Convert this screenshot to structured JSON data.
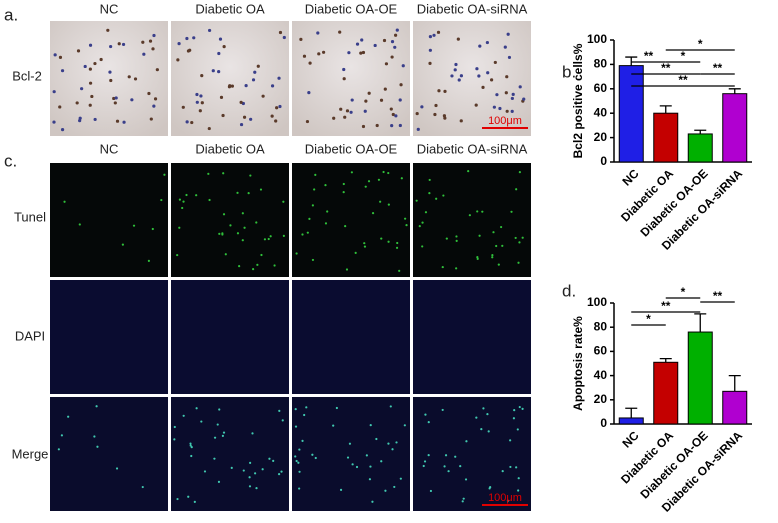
{
  "figure": {
    "panel_labels": [
      "a.",
      "b.",
      "c.",
      "d."
    ],
    "ihc": {
      "columns": [
        "NC",
        "Diabetic OA",
        "Diabetic OA-OE",
        "Diabetic OA-siRNA"
      ],
      "row": "Bcl-2",
      "scale_bar": "100μm"
    },
    "fluorescence": {
      "columns": [
        "NC",
        "Diabetic OA",
        "Diabetic OA-OE",
        "Diabetic OA-siRNA"
      ],
      "rows": [
        "Tunel",
        "DAPI",
        "Merge"
      ],
      "scale_bar": "100μm"
    }
  },
  "chart_data": [
    {
      "type": "bar",
      "ylabel": "Bcl2 positive cells%",
      "categories": [
        "NC",
        "Diabetic OA",
        "Diabetic OA-OE",
        "Diabetic OA-siRNA"
      ],
      "values": [
        79,
        40,
        23,
        56
      ],
      "errors": [
        7,
        6,
        3,
        4
      ],
      "colors": [
        "#1f1fe6",
        "#c40000",
        "#00b000",
        "#b000d0"
      ],
      "ylim": [
        0,
        100
      ],
      "yticks": [
        0,
        20,
        40,
        60,
        80,
        100
      ],
      "significance": [
        {
          "from": 1,
          "to": 3,
          "label": "*"
        },
        {
          "from": 0,
          "to": 1,
          "label": "**"
        },
        {
          "from": 1,
          "to": 2,
          "label": "*"
        },
        {
          "from": 0,
          "to": 2,
          "label": "**"
        },
        {
          "from": 2,
          "to": 3,
          "label": "**"
        },
        {
          "from": 0,
          "to": 3,
          "label": "**"
        }
      ]
    },
    {
      "type": "bar",
      "ylabel": "Apoptosis rate%",
      "categories": [
        "NC",
        "Diabetic OA",
        "Diabetic OA-OE",
        "Diabetic OA-siRNA"
      ],
      "values": [
        5,
        51,
        76,
        27
      ],
      "errors": [
        8,
        3,
        15,
        13
      ],
      "colors": [
        "#1f1fe6",
        "#c40000",
        "#00b000",
        "#b000d0"
      ],
      "ylim": [
        0,
        100
      ],
      "yticks": [
        0,
        20,
        40,
        60,
        80,
        100
      ],
      "significance": [
        {
          "from": 1,
          "to": 2,
          "label": "*"
        },
        {
          "from": 2,
          "to": 3,
          "label": "**"
        },
        {
          "from": 0,
          "to": 2,
          "label": "**"
        },
        {
          "from": 0,
          "to": 1,
          "label": "*"
        }
      ]
    }
  ]
}
